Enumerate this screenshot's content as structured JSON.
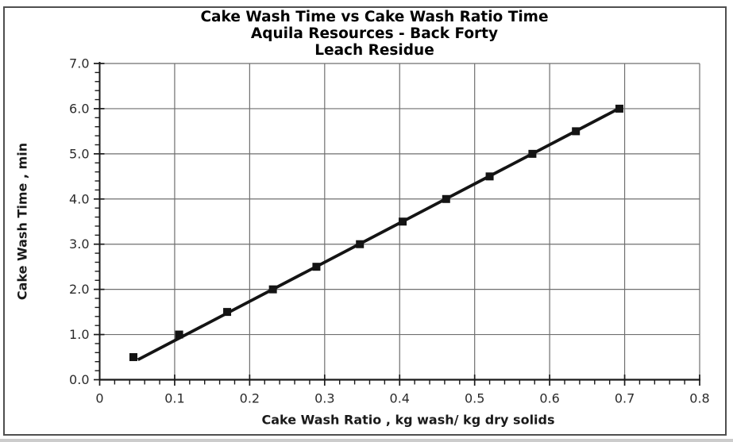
{
  "page": {
    "background": "#ffffff",
    "frame_border_color": "#4f4f4f"
  },
  "title": {
    "line1": "Cake Wash Time vs Cake Wash Ratio Time",
    "line2": "Aquila Resources - Back Forty",
    "line3": "Leach Residue"
  },
  "chart_data": {
    "type": "scatter",
    "title": "Cake Wash Time vs Cake Wash Ratio Time Aquila Resources - Back Forty Leach Residue",
    "xlabel": "Cake Wash Ratio , kg wash/ kg dry solids",
    "ylabel": "Cake Wash Time , min",
    "x": [
      0.045,
      0.106,
      0.17,
      0.231,
      0.289,
      0.347,
      0.404,
      0.462,
      0.52,
      0.577,
      0.635,
      0.693
    ],
    "y": [
      0.5,
      1.0,
      1.5,
      2.0,
      2.5,
      3.0,
      3.5,
      4.0,
      4.5,
      5.0,
      5.5,
      6.0
    ],
    "trendline": {
      "slope": 8.67,
      "intercept": 0,
      "x_start": 0.051,
      "x_end": 0.6975
    },
    "xlim": [
      0,
      0.8
    ],
    "ylim": [
      0,
      7.0
    ],
    "x_ticks": {
      "values": [
        0,
        0.1,
        0.2,
        0.3,
        0.4,
        0.5,
        0.6,
        0.7,
        0.8
      ],
      "labels": [
        "0",
        "0.1",
        "0.2",
        "0.3",
        "0.4",
        "0.5",
        "0.6",
        "0.7",
        "0.8"
      ],
      "minor_step": 0.02
    },
    "y_ticks": {
      "values": [
        0,
        1,
        2,
        3,
        4,
        5,
        6,
        7
      ],
      "labels": [
        "0.0",
        "1.0",
        "2.0",
        "3.0",
        "4.0",
        "5.0",
        "6.0",
        "7.0"
      ],
      "minor_step": 0.2
    },
    "grid": "major-both",
    "legend": "none",
    "marker": "square",
    "colors": {
      "series": "#141414",
      "grid": "#6f6f6f",
      "axis": "#1a1a1a",
      "tick_text": "#2b2b2b",
      "title_text": "#000000"
    }
  }
}
